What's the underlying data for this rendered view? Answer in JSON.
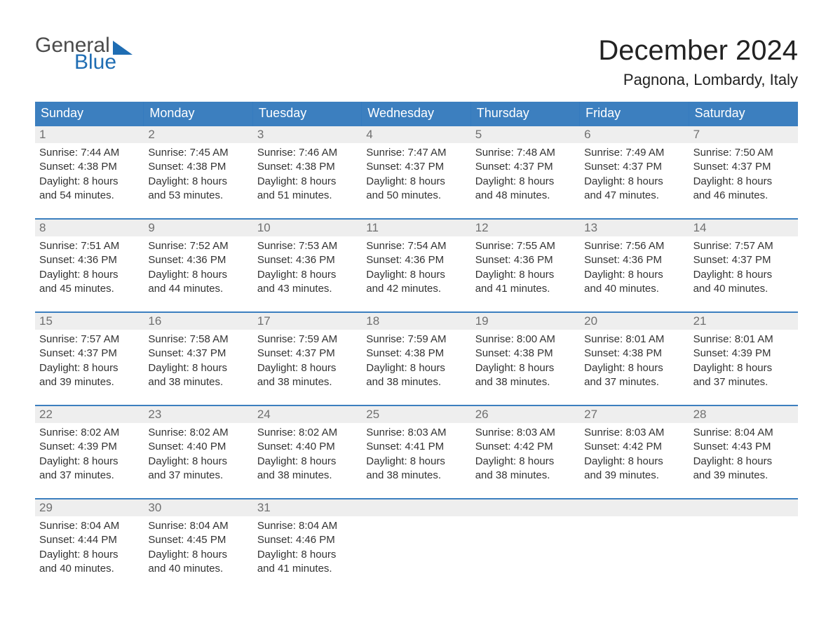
{
  "brand": {
    "word1": "General",
    "word2": "Blue"
  },
  "title": "December 2024",
  "location": "Pagnona, Lombardy, Italy",
  "colors": {
    "header_bg": "#3c7fbf",
    "header_text": "#ffffff",
    "week_border": "#3c7fbf",
    "daynum_bg": "#eeeeee",
    "daynum_text": "#707070",
    "body_text": "#333333",
    "logo_blue": "#1f6db3",
    "logo_gray": "#4b4b4b",
    "page_bg": "#ffffff"
  },
  "typography": {
    "title_fontsize": 40,
    "location_fontsize": 22,
    "weekday_fontsize": 18,
    "daynum_fontsize": 17,
    "body_fontsize": 15,
    "logo_fontsize": 30
  },
  "weekdays": [
    "Sunday",
    "Monday",
    "Tuesday",
    "Wednesday",
    "Thursday",
    "Friday",
    "Saturday"
  ],
  "weeks": [
    [
      {
        "n": "1",
        "sr": "Sunrise: 7:44 AM",
        "ss": "Sunset: 4:38 PM",
        "d1": "Daylight: 8 hours",
        "d2": "and 54 minutes."
      },
      {
        "n": "2",
        "sr": "Sunrise: 7:45 AM",
        "ss": "Sunset: 4:38 PM",
        "d1": "Daylight: 8 hours",
        "d2": "and 53 minutes."
      },
      {
        "n": "3",
        "sr": "Sunrise: 7:46 AM",
        "ss": "Sunset: 4:38 PM",
        "d1": "Daylight: 8 hours",
        "d2": "and 51 minutes."
      },
      {
        "n": "4",
        "sr": "Sunrise: 7:47 AM",
        "ss": "Sunset: 4:37 PM",
        "d1": "Daylight: 8 hours",
        "d2": "and 50 minutes."
      },
      {
        "n": "5",
        "sr": "Sunrise: 7:48 AM",
        "ss": "Sunset: 4:37 PM",
        "d1": "Daylight: 8 hours",
        "d2": "and 48 minutes."
      },
      {
        "n": "6",
        "sr": "Sunrise: 7:49 AM",
        "ss": "Sunset: 4:37 PM",
        "d1": "Daylight: 8 hours",
        "d2": "and 47 minutes."
      },
      {
        "n": "7",
        "sr": "Sunrise: 7:50 AM",
        "ss": "Sunset: 4:37 PM",
        "d1": "Daylight: 8 hours",
        "d2": "and 46 minutes."
      }
    ],
    [
      {
        "n": "8",
        "sr": "Sunrise: 7:51 AM",
        "ss": "Sunset: 4:36 PM",
        "d1": "Daylight: 8 hours",
        "d2": "and 45 minutes."
      },
      {
        "n": "9",
        "sr": "Sunrise: 7:52 AM",
        "ss": "Sunset: 4:36 PM",
        "d1": "Daylight: 8 hours",
        "d2": "and 44 minutes."
      },
      {
        "n": "10",
        "sr": "Sunrise: 7:53 AM",
        "ss": "Sunset: 4:36 PM",
        "d1": "Daylight: 8 hours",
        "d2": "and 43 minutes."
      },
      {
        "n": "11",
        "sr": "Sunrise: 7:54 AM",
        "ss": "Sunset: 4:36 PM",
        "d1": "Daylight: 8 hours",
        "d2": "and 42 minutes."
      },
      {
        "n": "12",
        "sr": "Sunrise: 7:55 AM",
        "ss": "Sunset: 4:36 PM",
        "d1": "Daylight: 8 hours",
        "d2": "and 41 minutes."
      },
      {
        "n": "13",
        "sr": "Sunrise: 7:56 AM",
        "ss": "Sunset: 4:36 PM",
        "d1": "Daylight: 8 hours",
        "d2": "and 40 minutes."
      },
      {
        "n": "14",
        "sr": "Sunrise: 7:57 AM",
        "ss": "Sunset: 4:37 PM",
        "d1": "Daylight: 8 hours",
        "d2": "and 40 minutes."
      }
    ],
    [
      {
        "n": "15",
        "sr": "Sunrise: 7:57 AM",
        "ss": "Sunset: 4:37 PM",
        "d1": "Daylight: 8 hours",
        "d2": "and 39 minutes."
      },
      {
        "n": "16",
        "sr": "Sunrise: 7:58 AM",
        "ss": "Sunset: 4:37 PM",
        "d1": "Daylight: 8 hours",
        "d2": "and 38 minutes."
      },
      {
        "n": "17",
        "sr": "Sunrise: 7:59 AM",
        "ss": "Sunset: 4:37 PM",
        "d1": "Daylight: 8 hours",
        "d2": "and 38 minutes."
      },
      {
        "n": "18",
        "sr": "Sunrise: 7:59 AM",
        "ss": "Sunset: 4:38 PM",
        "d1": "Daylight: 8 hours",
        "d2": "and 38 minutes."
      },
      {
        "n": "19",
        "sr": "Sunrise: 8:00 AM",
        "ss": "Sunset: 4:38 PM",
        "d1": "Daylight: 8 hours",
        "d2": "and 38 minutes."
      },
      {
        "n": "20",
        "sr": "Sunrise: 8:01 AM",
        "ss": "Sunset: 4:38 PM",
        "d1": "Daylight: 8 hours",
        "d2": "and 37 minutes."
      },
      {
        "n": "21",
        "sr": "Sunrise: 8:01 AM",
        "ss": "Sunset: 4:39 PM",
        "d1": "Daylight: 8 hours",
        "d2": "and 37 minutes."
      }
    ],
    [
      {
        "n": "22",
        "sr": "Sunrise: 8:02 AM",
        "ss": "Sunset: 4:39 PM",
        "d1": "Daylight: 8 hours",
        "d2": "and 37 minutes."
      },
      {
        "n": "23",
        "sr": "Sunrise: 8:02 AM",
        "ss": "Sunset: 4:40 PM",
        "d1": "Daylight: 8 hours",
        "d2": "and 37 minutes."
      },
      {
        "n": "24",
        "sr": "Sunrise: 8:02 AM",
        "ss": "Sunset: 4:40 PM",
        "d1": "Daylight: 8 hours",
        "d2": "and 38 minutes."
      },
      {
        "n": "25",
        "sr": "Sunrise: 8:03 AM",
        "ss": "Sunset: 4:41 PM",
        "d1": "Daylight: 8 hours",
        "d2": "and 38 minutes."
      },
      {
        "n": "26",
        "sr": "Sunrise: 8:03 AM",
        "ss": "Sunset: 4:42 PM",
        "d1": "Daylight: 8 hours",
        "d2": "and 38 minutes."
      },
      {
        "n": "27",
        "sr": "Sunrise: 8:03 AM",
        "ss": "Sunset: 4:42 PM",
        "d1": "Daylight: 8 hours",
        "d2": "and 39 minutes."
      },
      {
        "n": "28",
        "sr": "Sunrise: 8:04 AM",
        "ss": "Sunset: 4:43 PM",
        "d1": "Daylight: 8 hours",
        "d2": "and 39 minutes."
      }
    ],
    [
      {
        "n": "29",
        "sr": "Sunrise: 8:04 AM",
        "ss": "Sunset: 4:44 PM",
        "d1": "Daylight: 8 hours",
        "d2": "and 40 minutes."
      },
      {
        "n": "30",
        "sr": "Sunrise: 8:04 AM",
        "ss": "Sunset: 4:45 PM",
        "d1": "Daylight: 8 hours",
        "d2": "and 40 minutes."
      },
      {
        "n": "31",
        "sr": "Sunrise: 8:04 AM",
        "ss": "Sunset: 4:46 PM",
        "d1": "Daylight: 8 hours",
        "d2": "and 41 minutes."
      },
      null,
      null,
      null,
      null
    ]
  ]
}
